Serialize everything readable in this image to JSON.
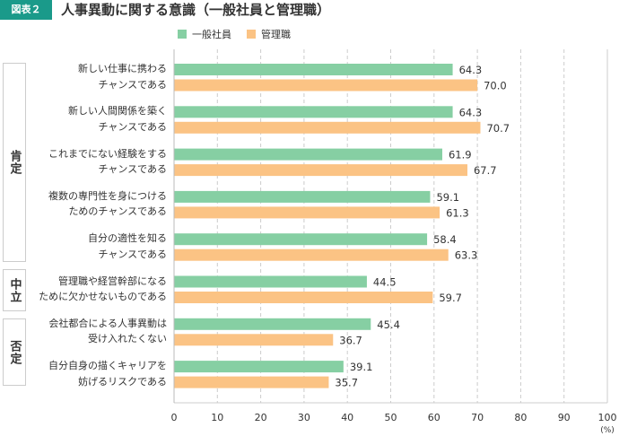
{
  "header": {
    "badge": "図表２",
    "title": "人事異動に関する意識（一般社員と管理職）"
  },
  "groups": [
    {
      "label": "肯定"
    },
    {
      "label": "中立"
    },
    {
      "label": "否定"
    }
  ],
  "chart_data": {
    "type": "bar",
    "orientation": "horizontal",
    "title": "人事異動に関する意識（一般社員と管理職）",
    "categories": [
      [
        "新しい仕事に携わる",
        "チャンスである"
      ],
      [
        "新しい人間関係を築く",
        "チャンスである"
      ],
      [
        "これまでにない経験をする",
        "チャンスである"
      ],
      [
        "複数の専門性を身につける",
        "ためのチャンスである"
      ],
      [
        "自分の適性を知る",
        "チャンスである"
      ],
      [
        "管理職や経営幹部になる",
        "ために欠かせないものである"
      ],
      [
        "会社都合による人事異動は",
        "受け入れたくない"
      ],
      [
        "自分自身の描くキャリアを",
        "妨げるリスクである"
      ]
    ],
    "category_groups": [
      "肯定",
      "肯定",
      "肯定",
      "肯定",
      "肯定",
      "中立",
      "否定",
      "否定"
    ],
    "series": [
      {
        "name": "一般社員",
        "color": "#86cfa3",
        "values": [
          64.3,
          64.3,
          61.9,
          59.1,
          58.4,
          44.5,
          45.4,
          39.1
        ]
      },
      {
        "name": "管理職",
        "color": "#fbc384",
        "values": [
          70.0,
          70.7,
          67.7,
          61.3,
          63.3,
          59.7,
          36.7,
          35.7
        ]
      }
    ],
    "xlim": [
      0,
      100
    ],
    "xticks": [
      0,
      10,
      20,
      30,
      40,
      50,
      60,
      70,
      80,
      90,
      100
    ],
    "xunit": "(%)",
    "grid": true,
    "legend": "top"
  }
}
